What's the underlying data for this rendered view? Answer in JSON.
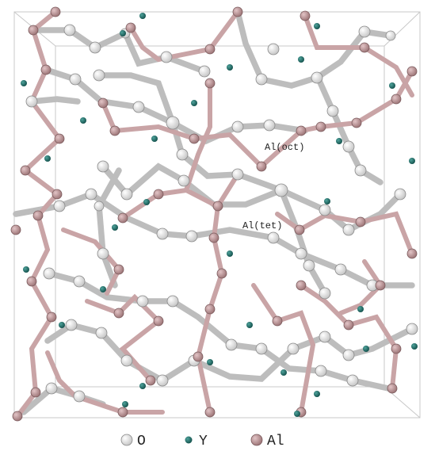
{
  "annotations": [
    "Al(oct)",
    "Al(tet)"
  ],
  "legend": [
    "O",
    "Y",
    "Al"
  ]
}
